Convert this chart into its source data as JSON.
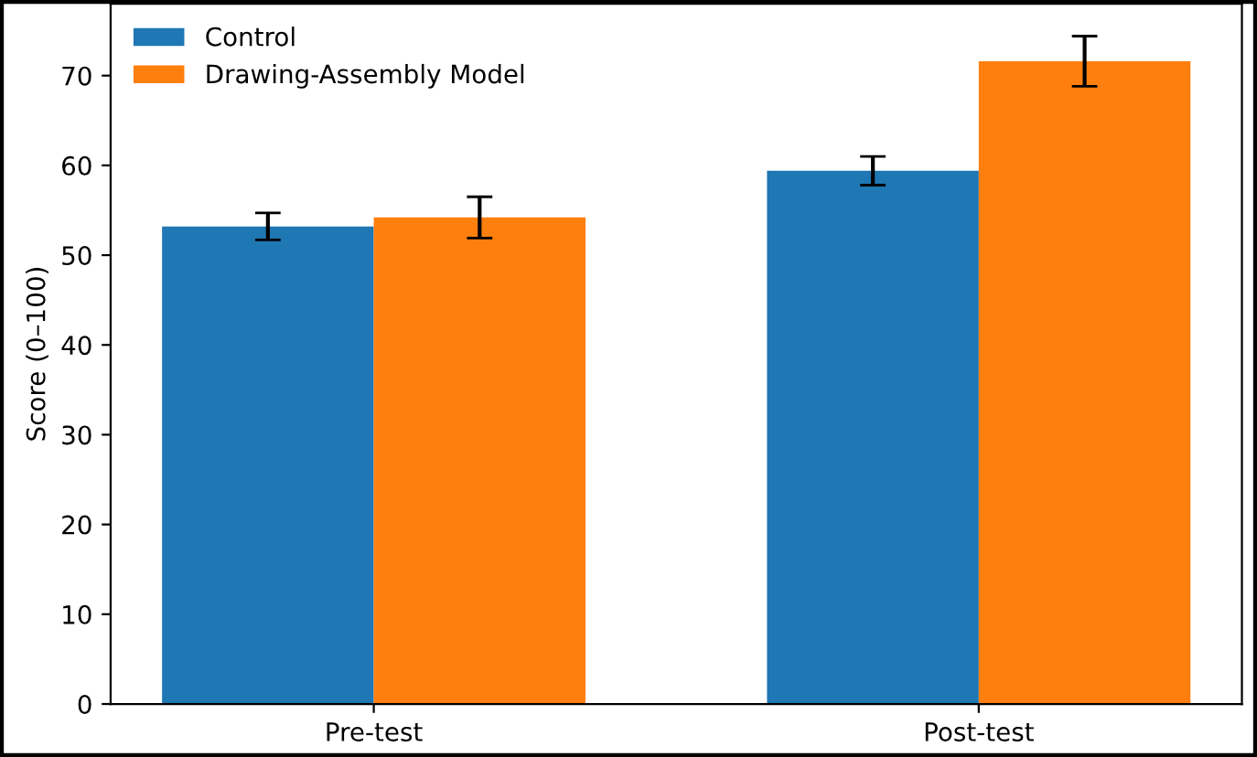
{
  "chart_data": {
    "type": "bar",
    "categories": [
      "Pre-test",
      "Post-test"
    ],
    "ylabel": "Score (0–100)",
    "ylim": [
      0,
      78
    ],
    "yticks": [
      0,
      10,
      20,
      30,
      40,
      50,
      60,
      70
    ],
    "legend": "top left",
    "grid": false,
    "series": [
      {
        "name": "Control",
        "color": "#1f77b4",
        "values": [
          53.2,
          59.4
        ],
        "errors": [
          1.5,
          1.6
        ]
      },
      {
        "name": "Drawing-Assembly Model",
        "color": "#ff7f0e",
        "values": [
          54.2,
          71.6
        ],
        "errors": [
          2.3,
          2.8
        ]
      }
    ]
  }
}
